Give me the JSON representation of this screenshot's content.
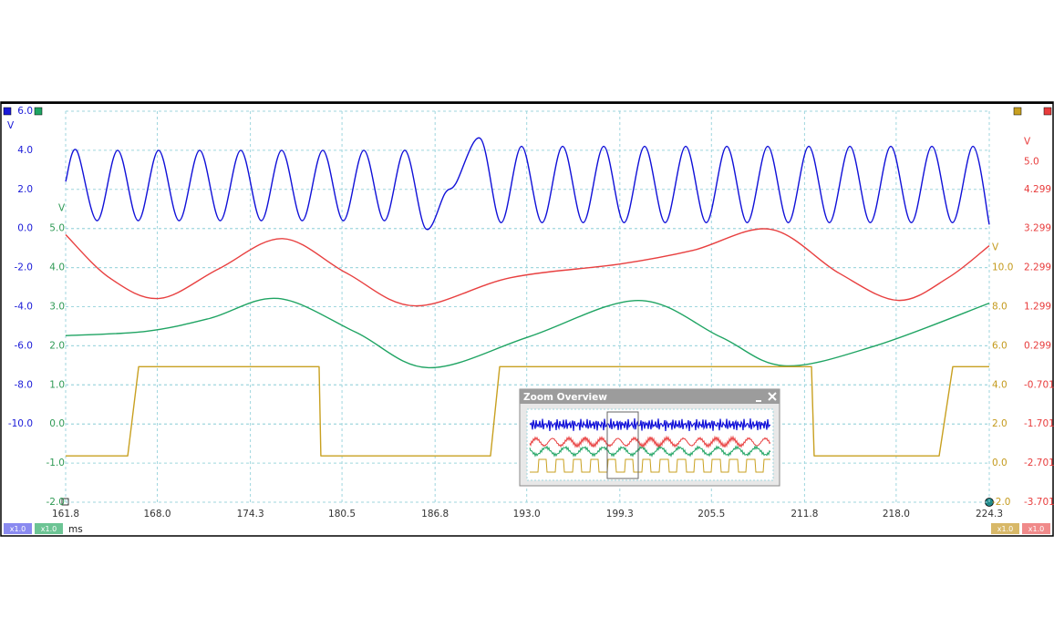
{
  "chart_data": {
    "type": "line",
    "x_unit": "ms",
    "xlim": [
      161.8,
      224.3
    ],
    "xticks": [
      161.8,
      {
        "value": 168,
        "label": "168.0"
      },
      174.3,
      180.5,
      186.8,
      {
        "value": 193,
        "label": "193.0"
      },
      199.3,
      205.5,
      211.8,
      {
        "value": 218,
        "label": "218.0"
      },
      224.3
    ],
    "grid": true,
    "axes": [
      {
        "unit": "V",
        "side": "left",
        "color": "#1a1ad8",
        "grid": true,
        "ylim": [
          -14,
          6
        ],
        "yticks": [
          {
            "value": 6,
            "label": "6.0"
          },
          {
            "value": 4,
            "label": "4.0"
          },
          {
            "value": 2,
            "label": "2.0"
          },
          {
            "value": 0,
            "label": "0.0"
          },
          {
            "value": -2,
            "label": "-2.0"
          },
          {
            "value": -4,
            "label": "-4.0"
          },
          {
            "value": -6,
            "label": "-6.0"
          },
          {
            "value": -8,
            "label": "-8.0"
          },
          {
            "value": -10,
            "label": "-10.0"
          }
        ]
      },
      {
        "unit": "V",
        "side": "left",
        "color": "#2f9a55",
        "grid": true,
        "ylim": [
          -2,
          8
        ],
        "yticks": [
          {
            "value": 5,
            "label": "5.0"
          },
          {
            "value": 4,
            "label": "4.0"
          },
          {
            "value": 3,
            "label": "3.0"
          },
          {
            "value": 2,
            "label": "2.0"
          },
          {
            "value": 1,
            "label": "1.0"
          },
          {
            "value": 0,
            "label": "0.0"
          },
          {
            "value": -1,
            "label": "-1.0"
          },
          {
            "value": -2,
            "label": "-2.0"
          }
        ]
      },
      {
        "unit": "V",
        "side": "right",
        "color": "#c49a1c",
        "grid": false,
        "ylim": [
          -2,
          18
        ],
        "yticks": [
          {
            "value": 10,
            "label": "10.0"
          },
          {
            "value": 8,
            "label": "8.0"
          },
          {
            "value": 6,
            "label": "6.0"
          },
          {
            "value": 4,
            "label": "4.0"
          },
          {
            "value": 2,
            "label": "2.0"
          },
          {
            "value": 0,
            "label": "0.0"
          },
          {
            "value": -2,
            "label": "-2.0"
          }
        ]
      },
      {
        "unit": "V",
        "side": "right",
        "color": "#e83c3c",
        "grid": false,
        "ylim": [
          -3.701,
          6.299
        ],
        "yticks": [
          {
            "value": 5,
            "label": "5.0"
          },
          4.299,
          3.299,
          2.299,
          1.299,
          0.299,
          -0.701,
          -1.701,
          -2.701,
          -3.701
        ]
      }
    ],
    "series": [
      {
        "color": "#1010d8",
        "axis": 0,
        "interpolation": "smooth",
        "x": [
          161.8,
          162.54,
          163.93,
          165.32,
          166.71,
          168.09,
          169.48,
          170.87,
          172.26,
          173.65,
          175.04,
          176.42,
          177.81,
          179.2,
          180.59,
          181.98,
          183.37,
          184.76,
          186.15,
          187.47,
          188.2,
          189.87,
          191.26,
          192.65,
          194.04,
          195.43,
          196.82,
          198.21,
          199.59,
          200.98,
          202.37,
          203.76,
          205.15,
          206.54,
          207.92,
          209.31,
          210.7,
          212.09,
          213.48,
          214.87,
          216.25,
          217.64,
          219.03,
          220.42,
          221.81,
          223.2,
          224.3
        ],
        "values": [
          2.4,
          4.0,
          0.4,
          4.0,
          0.4,
          4.0,
          0.4,
          4.0,
          0.4,
          4.0,
          0.4,
          4.0,
          0.4,
          4.0,
          0.4,
          4.0,
          0.4,
          4.0,
          0.0,
          1.8,
          2.3,
          4.6,
          0.3,
          4.2,
          0.3,
          4.2,
          0.3,
          4.2,
          0.3,
          4.2,
          0.3,
          4.2,
          0.3,
          4.2,
          0.3,
          4.2,
          0.3,
          4.2,
          0.3,
          4.2,
          0.3,
          4.2,
          0.3,
          4.2,
          0.3,
          4.2,
          0.2
        ]
      },
      {
        "color": "#e84040",
        "axis": 3,
        "interpolation": "smooth",
        "x": [
          161.8,
          164.76,
          168.15,
          172.17,
          176.48,
          180.8,
          185.43,
          191.91,
          199.31,
          204.25,
          209.49,
          214.12,
          218.13,
          221.52,
          224.3
        ],
        "values": [
          3.14,
          2.04,
          1.51,
          2.27,
          3.04,
          2.16,
          1.32,
          2.04,
          2.39,
          2.74,
          3.28,
          2.16,
          1.46,
          2.04,
          2.86
        ]
      },
      {
        "color": "#1fa463",
        "axis": 1,
        "interpolation": "smooth",
        "x": [
          161.8,
          167.23,
          171.55,
          176.18,
          181.42,
          186.36,
          193.14,
          200.55,
          206.1,
          210.42,
          216.59,
          224.3
        ],
        "values": [
          2.26,
          2.37,
          2.7,
          3.21,
          2.35,
          1.44,
          2.23,
          3.16,
          2.23,
          1.49,
          2.0,
          3.09
        ]
      },
      {
        "color": "#c8a020",
        "axis": 2,
        "interpolation": "linear",
        "x": [
          161.8,
          166.0,
          166.74,
          178.95,
          179.07,
          190.55,
          191.17,
          212.27,
          212.45,
          220.91,
          221.83,
          224.3
        ],
        "values": [
          0.37,
          0.37,
          4.93,
          4.93,
          0.37,
          0.37,
          4.93,
          4.93,
          0.37,
          0.37,
          4.93,
          4.93
        ]
      }
    ]
  },
  "zoom_overview": {
    "title": "Zoom Overview"
  },
  "scale_badges": [
    "x1.0",
    "x1.0",
    "x1.0",
    "x1.0"
  ]
}
